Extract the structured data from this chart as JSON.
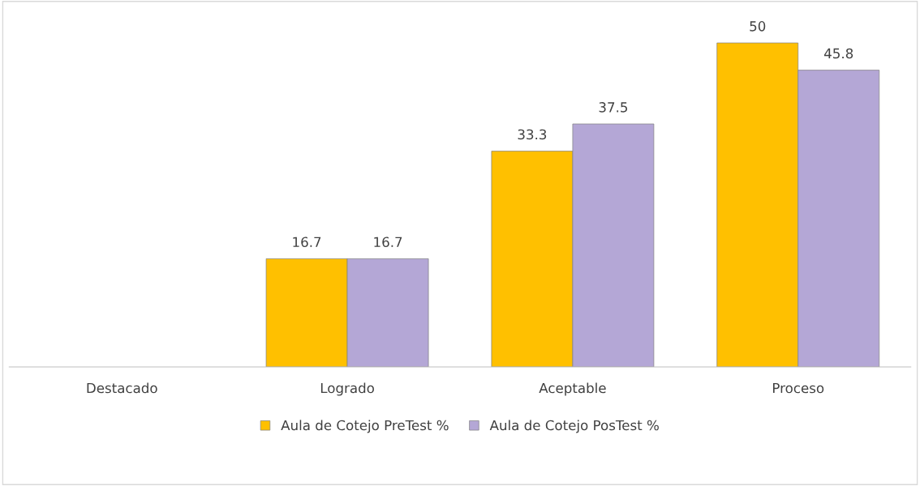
{
  "chart_data": {
    "type": "bar",
    "categories": [
      "Destacado",
      "Logrado",
      "Aceptable",
      "Proceso"
    ],
    "series": [
      {
        "name": "Aula de Cotejo PreTest %",
        "color": "#ffc000",
        "values": [
          null,
          16.7,
          33.3,
          50
        ]
      },
      {
        "name": "Aula de Cotejo PosTest %",
        "color": "#b4a7d6",
        "values": [
          null,
          16.7,
          37.5,
          45.8
        ]
      }
    ],
    "data_labels": true,
    "legend": "bottom"
  }
}
